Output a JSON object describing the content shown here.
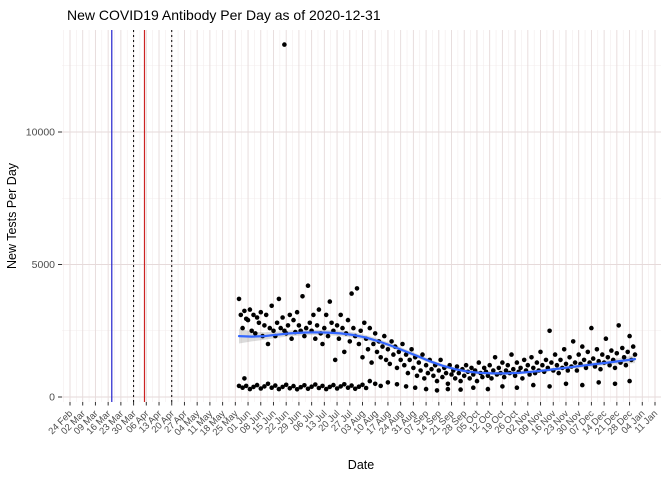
{
  "page": {
    "title": "New COVID19 Antibody Per Day as of 2020-12-31"
  },
  "chart_data": {
    "type": "scatter",
    "title": "New COVID19 Antibody Per Day as of 2020-12-31",
    "xlabel": "Date",
    "ylabel": "New Tests Per Day",
    "x_axis": {
      "tick_interval_days": 7,
      "tick_labels": [
        "24 Feb",
        "02 Mar",
        "09 Mar",
        "16 Mar",
        "23 Mar",
        "30 Mar",
        "06 Apr",
        "13 Apr",
        "20 Apr",
        "27 Apr",
        "04 May",
        "11 May",
        "18 May",
        "25 May",
        "01 Jun",
        "08 Jun",
        "15 Jun",
        "22 Jun",
        "29 Jun",
        "06 Jul",
        "13 Jul",
        "20 Jul",
        "27 Jul",
        "03 Aug",
        "10 Aug",
        "17 Aug",
        "24 Aug",
        "31 Aug",
        "07 Sep",
        "14 Sep",
        "21 Sep",
        "28 Sep",
        "05 Oct",
        "12 Oct",
        "19 Oct",
        "26 Oct",
        "02 Nov",
        "09 Nov",
        "16 Nov",
        "23 Nov",
        "30 Nov",
        "07 Dec",
        "14 Dec",
        "21 Dec",
        "28 Dec",
        "04 Jan",
        "11 Jan"
      ]
    },
    "y_axis": {
      "ticks": [
        0,
        5000,
        10000
      ],
      "minor_ticks": [
        2500,
        7500,
        12500
      ],
      "max_visible": 13800
    },
    "vlines": [
      {
        "day": 23,
        "color": "#2222cc",
        "style": "solid"
      },
      {
        "day": 35,
        "color": "#000000",
        "style": "dotted"
      },
      {
        "day": 41,
        "color": "#cc2222",
        "style": "solid"
      },
      {
        "day": 56,
        "color": "#000000",
        "style": "dotted"
      }
    ],
    "colors": {
      "point": "#000000",
      "smooth": "#3366FF",
      "band": "#999999",
      "grid_major": "#e6dada",
      "grid_minor": "#f3ecec",
      "tick": "#333333"
    },
    "smooth": [
      [
        93,
        2300,
        280
      ],
      [
        100,
        2280,
        180
      ],
      [
        107,
        2300,
        140
      ],
      [
        114,
        2350,
        120
      ],
      [
        121,
        2400,
        110
      ],
      [
        128,
        2430,
        105
      ],
      [
        135,
        2440,
        100
      ],
      [
        142,
        2430,
        100
      ],
      [
        149,
        2400,
        100
      ],
      [
        156,
        2340,
        100
      ],
      [
        163,
        2240,
        95
      ],
      [
        170,
        2100,
        90
      ],
      [
        177,
        1930,
        85
      ],
      [
        184,
        1740,
        80
      ],
      [
        191,
        1550,
        75
      ],
      [
        198,
        1350,
        70
      ],
      [
        205,
        1180,
        65
      ],
      [
        212,
        1050,
        60
      ],
      [
        219,
        960,
        60
      ],
      [
        226,
        910,
        60
      ],
      [
        233,
        890,
        60
      ],
      [
        240,
        890,
        60
      ],
      [
        247,
        910,
        60
      ],
      [
        254,
        950,
        60
      ],
      [
        261,
        1000,
        60
      ],
      [
        268,
        1060,
        60
      ],
      [
        275,
        1120,
        65
      ],
      [
        282,
        1180,
        70
      ],
      [
        289,
        1240,
        80
      ],
      [
        296,
        1300,
        95
      ],
      [
        303,
        1360,
        115
      ],
      [
        311,
        1430,
        150
      ]
    ],
    "points": [
      [
        93,
        3700
      ],
      [
        93,
        420
      ],
      [
        94,
        3100
      ],
      [
        95,
        2600
      ],
      [
        95,
        350
      ],
      [
        96,
        700
      ],
      [
        96,
        3250
      ],
      [
        97,
        2950
      ],
      [
        97,
        420
      ],
      [
        98,
        2900
      ],
      [
        99,
        3300
      ],
      [
        99,
        300
      ],
      [
        100,
        2500
      ],
      [
        101,
        3100
      ],
      [
        101,
        380
      ],
      [
        102,
        2400
      ],
      [
        103,
        3000
      ],
      [
        103,
        450
      ],
      [
        104,
        2800
      ],
      [
        105,
        3200
      ],
      [
        105,
        320
      ],
      [
        106,
        2300
      ],
      [
        107,
        2700
      ],
      [
        107,
        400
      ],
      [
        108,
        3100
      ],
      [
        109,
        2000
      ],
      [
        109,
        500
      ],
      [
        110,
        2600
      ],
      [
        111,
        3440
      ],
      [
        111,
        350
      ],
      [
        112,
        2500
      ],
      [
        113,
        2300
      ],
      [
        113,
        430
      ],
      [
        114,
        2800
      ],
      [
        115,
        3700
      ],
      [
        115,
        300
      ],
      [
        116,
        2600
      ],
      [
        117,
        3000
      ],
      [
        117,
        380
      ],
      [
        118,
        13300
      ],
      [
        118,
        2500
      ],
      [
        119,
        2400
      ],
      [
        119,
        460
      ],
      [
        120,
        2700
      ],
      [
        121,
        3100
      ],
      [
        121,
        330
      ],
      [
        122,
        2200
      ],
      [
        123,
        2900
      ],
      [
        123,
        410
      ],
      [
        124,
        2450
      ],
      [
        125,
        3200
      ],
      [
        125,
        290
      ],
      [
        126,
        2700
      ],
      [
        127,
        2500
      ],
      [
        127,
        370
      ],
      [
        128,
        3800
      ],
      [
        129,
        2300
      ],
      [
        129,
        440
      ],
      [
        130,
        2600
      ],
      [
        131,
        4200
      ],
      [
        131,
        310
      ],
      [
        132,
        2800
      ],
      [
        133,
        2500
      ],
      [
        133,
        390
      ],
      [
        134,
        3100
      ],
      [
        135,
        2200
      ],
      [
        135,
        470
      ],
      [
        136,
        2700
      ],
      [
        137,
        3300
      ],
      [
        137,
        340
      ],
      [
        138,
        2400
      ],
      [
        139,
        2000
      ],
      [
        139,
        420
      ],
      [
        140,
        2600
      ],
      [
        141,
        3100
      ],
      [
        141,
        300
      ],
      [
        142,
        2300
      ],
      [
        143,
        3600
      ],
      [
        143,
        380
      ],
      [
        144,
        2800
      ],
      [
        145,
        2500
      ],
      [
        145,
        450
      ],
      [
        146,
        1400
      ],
      [
        147,
        2700
      ],
      [
        147,
        320
      ],
      [
        148,
        2200
      ],
      [
        149,
        3100
      ],
      [
        149,
        400
      ],
      [
        150,
        2600
      ],
      [
        151,
        1700
      ],
      [
        151,
        480
      ],
      [
        152,
        2400
      ],
      [
        153,
        2900
      ],
      [
        153,
        350
      ],
      [
        154,
        2100
      ],
      [
        155,
        3900
      ],
      [
        155,
        430
      ],
      [
        156,
        2600
      ],
      [
        157,
        2300
      ],
      [
        157,
        310
      ],
      [
        158,
        4100
      ],
      [
        159,
        2000
      ],
      [
        159,
        390
      ],
      [
        160,
        2500
      ],
      [
        161,
        1500
      ],
      [
        161,
        460
      ],
      [
        162,
        2800
      ],
      [
        163,
        2200
      ],
      [
        163,
        340
      ],
      [
        164,
        1800
      ],
      [
        165,
        2600
      ],
      [
        165,
        600
      ],
      [
        166,
        1300
      ],
      [
        167,
        2000
      ],
      [
        168,
        2400
      ],
      [
        168,
        500
      ],
      [
        169,
        1700
      ],
      [
        170,
        2100
      ],
      [
        171,
        1500
      ],
      [
        171,
        420
      ],
      [
        172,
        1900
      ],
      [
        173,
        2300
      ],
      [
        174,
        1400
      ],
      [
        175,
        1800
      ],
      [
        175,
        550
      ],
      [
        176,
        1250
      ],
      [
        177,
        2100
      ],
      [
        178,
        1600
      ],
      [
        179,
        1900
      ],
      [
        180,
        1100
      ],
      [
        180,
        480
      ],
      [
        181,
        1700
      ],
      [
        182,
        1400
      ],
      [
        183,
        2000
      ],
      [
        184,
        1200
      ],
      [
        185,
        1600
      ],
      [
        185,
        400
      ],
      [
        186,
        900
      ],
      [
        187,
        1400
      ],
      [
        188,
        1800
      ],
      [
        189,
        1100
      ],
      [
        190,
        1500
      ],
      [
        190,
        350
      ],
      [
        191,
        800
      ],
      [
        192,
        1300
      ],
      [
        193,
        1000
      ],
      [
        194,
        1600
      ],
      [
        195,
        700
      ],
      [
        196,
        1200
      ],
      [
        196,
        300
      ],
      [
        197,
        900
      ],
      [
        198,
        1400
      ],
      [
        199,
        1050
      ],
      [
        200,
        800
      ],
      [
        201,
        1200
      ],
      [
        202,
        600
      ],
      [
        202,
        250
      ],
      [
        203,
        1000
      ],
      [
        204,
        1400
      ],
      [
        205,
        750
      ],
      [
        206,
        1100
      ],
      [
        207,
        900
      ],
      [
        208,
        500
      ],
      [
        208,
        300
      ],
      [
        209,
        1200
      ],
      [
        210,
        850
      ],
      [
        211,
        1000
      ],
      [
        212,
        700
      ],
      [
        213,
        1150
      ],
      [
        214,
        900
      ],
      [
        215,
        600
      ],
      [
        215,
        280
      ],
      [
        216,
        1050
      ],
      [
        217,
        800
      ],
      [
        218,
        1200
      ],
      [
        219,
        950
      ],
      [
        220,
        700
      ],
      [
        221,
        1100
      ],
      [
        222,
        850
      ],
      [
        222,
        350
      ],
      [
        223,
        1000
      ],
      [
        224,
        600
      ],
      [
        225,
        1300
      ],
      [
        226,
        900
      ],
      [
        227,
        750
      ],
      [
        228,
        1100
      ],
      [
        229,
        950
      ],
      [
        230,
        800
      ],
      [
        230,
        300
      ],
      [
        231,
        1200
      ],
      [
        232,
        700
      ],
      [
        233,
        1000
      ],
      [
        234,
        1500
      ],
      [
        235,
        850
      ],
      [
        236,
        1100
      ],
      [
        237,
        900
      ],
      [
        238,
        1300
      ],
      [
        238,
        400
      ],
      [
        239,
        750
      ],
      [
        240,
        1000
      ],
      [
        241,
        1200
      ],
      [
        242,
        900
      ],
      [
        243,
        1600
      ],
      [
        244,
        1050
      ],
      [
        245,
        800
      ],
      [
        246,
        1300
      ],
      [
        246,
        350
      ],
      [
        247,
        950
      ],
      [
        248,
        1100
      ],
      [
        249,
        700
      ],
      [
        250,
        1400
      ],
      [
        251,
        1000
      ],
      [
        252,
        1200
      ],
      [
        253,
        850
      ],
      [
        254,
        1500
      ],
      [
        255,
        1100
      ],
      [
        255,
        450
      ],
      [
        256,
        900
      ],
      [
        257,
        1300
      ],
      [
        258,
        1000
      ],
      [
        259,
        1700
      ],
      [
        260,
        1200
      ],
      [
        261,
        950
      ],
      [
        262,
        1400
      ],
      [
        263,
        1100
      ],
      [
        264,
        2500
      ],
      [
        264,
        400
      ],
      [
        265,
        1300
      ],
      [
        266,
        1000
      ],
      [
        267,
        1600
      ],
      [
        268,
        1200
      ],
      [
        269,
        900
      ],
      [
        270,
        1400
      ],
      [
        271,
        1100
      ],
      [
        272,
        1800
      ],
      [
        273,
        1250
      ],
      [
        273,
        500
      ],
      [
        274,
        1000
      ],
      [
        275,
        1500
      ],
      [
        276,
        1150
      ],
      [
        277,
        2100
      ],
      [
        278,
        1300
      ],
      [
        279,
        1000
      ],
      [
        280,
        1600
      ],
      [
        281,
        1250
      ],
      [
        282,
        1900
      ],
      [
        282,
        450
      ],
      [
        283,
        1400
      ],
      [
        284,
        1100
      ],
      [
        285,
        1700
      ],
      [
        286,
        1300
      ],
      [
        287,
        2600
      ],
      [
        288,
        1450
      ],
      [
        289,
        1150
      ],
      [
        290,
        1800
      ],
      [
        291,
        1350
      ],
      [
        291,
        550
      ],
      [
        292,
        1050
      ],
      [
        293,
        1600
      ],
      [
        294,
        1300
      ],
      [
        295,
        2200
      ],
      [
        296,
        1500
      ],
      [
        297,
        1200
      ],
      [
        298,
        1750
      ],
      [
        299,
        1400
      ],
      [
        300,
        1100
      ],
      [
        300,
        500
      ],
      [
        301,
        1650
      ],
      [
        302,
        2700
      ],
      [
        303,
        1300
      ],
      [
        304,
        1850
      ],
      [
        305,
        1500
      ],
      [
        306,
        1200
      ],
      [
        307,
        1700
      ],
      [
        308,
        2300
      ],
      [
        308,
        600
      ],
      [
        309,
        1400
      ],
      [
        310,
        1900
      ],
      [
        311,
        1600
      ]
    ]
  }
}
